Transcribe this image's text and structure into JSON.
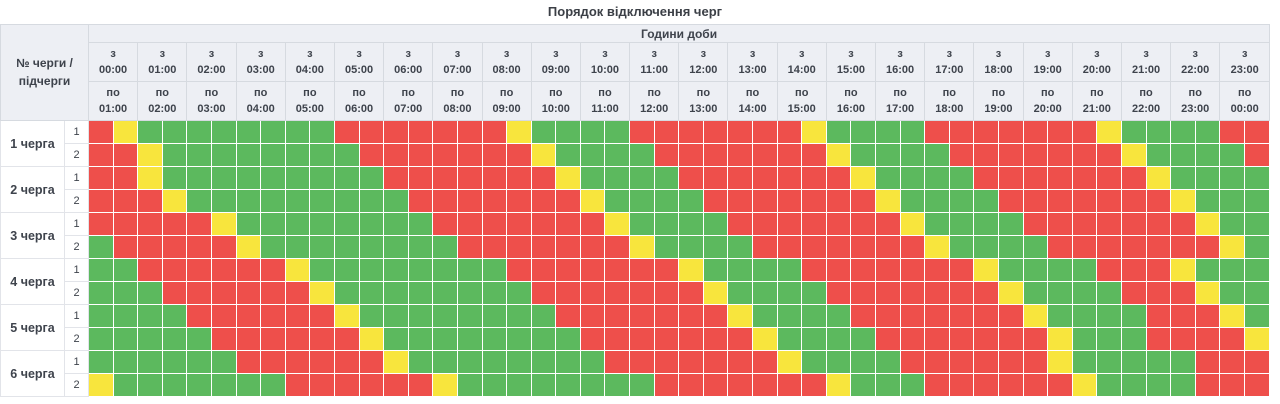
{
  "title": "Порядок відключення черг",
  "table": {
    "corner_label": "№ черги / підчерги",
    "hours_banner": "Години доби",
    "from_prefix": "з",
    "to_prefix": "по",
    "hours": [
      {
        "from": "00:00",
        "to": "01:00"
      },
      {
        "from": "01:00",
        "to": "02:00"
      },
      {
        "from": "02:00",
        "to": "03:00"
      },
      {
        "from": "03:00",
        "to": "04:00"
      },
      {
        "from": "04:00",
        "to": "05:00"
      },
      {
        "from": "05:00",
        "to": "06:00"
      },
      {
        "from": "06:00",
        "to": "07:00"
      },
      {
        "from": "07:00",
        "to": "08:00"
      },
      {
        "from": "08:00",
        "to": "09:00"
      },
      {
        "from": "09:00",
        "to": "10:00"
      },
      {
        "from": "10:00",
        "to": "11:00"
      },
      {
        "from": "11:00",
        "to": "12:00"
      },
      {
        "from": "12:00",
        "to": "13:00"
      },
      {
        "from": "13:00",
        "to": "14:00"
      },
      {
        "from": "14:00",
        "to": "15:00"
      },
      {
        "from": "15:00",
        "to": "16:00"
      },
      {
        "from": "16:00",
        "to": "17:00"
      },
      {
        "from": "17:00",
        "to": "18:00"
      },
      {
        "from": "18:00",
        "to": "19:00"
      },
      {
        "from": "19:00",
        "to": "20:00"
      },
      {
        "from": "20:00",
        "to": "21:00"
      },
      {
        "from": "21:00",
        "to": "22:00"
      },
      {
        "from": "22:00",
        "to": "23:00"
      },
      {
        "from": "23:00",
        "to": "00:00"
      }
    ],
    "cell_states": {
      "G": "power-on",
      "R": "power-off",
      "Y": "possible-outage"
    },
    "colors": {
      "green": "#5cb95e",
      "red": "#ee4f4b",
      "yellow": "#f8e53d"
    },
    "queues": [
      {
        "label": "1 черга",
        "subqueues": [
          {
            "label": "1",
            "cells": "RYGGGGGGGGRRRRRRRYGGGGRRRRRRRYGGGGRRRRRRRYGGGGRR"
          },
          {
            "label": "2",
            "cells": "RRYGGGGGGGGRRRRRRRYGGGGRRRRRRRYGGGGRRRRRRRYGGGGR"
          }
        ]
      },
      {
        "label": "2 черга",
        "subqueues": [
          {
            "label": "1",
            "cells": "RRYGGGGGGGGGRRRRRRRYGGGGRRRRRRRYGGGGRRRRRRRYGGGG"
          },
          {
            "label": "2",
            "cells": "RRRYGGGGGGGGGRRRRRRRYGGGGRRRRRRRYGGGGRRRRRRRYGGG"
          }
        ]
      },
      {
        "label": "3 черга",
        "subqueues": [
          {
            "label": "1",
            "cells": "RRRRRYGGGGGGGGRRRRRRRYGGGGRRRRRRRYGGGGRRRRRRRYGG"
          },
          {
            "label": "2",
            "cells": "GRRRRRYGGGGGGGGRRRRRRRYGGGGRRRRRRRYGGGGRRRRRRRYG"
          }
        ]
      },
      {
        "label": "4 черга",
        "subqueues": [
          {
            "label": "1",
            "cells": "GGRRRRRRYGGGGGGGGRRRRRRRYGGGGRRRRRRRYGGGGRRRYGGG"
          },
          {
            "label": "2",
            "cells": "GGGRRRRRRYGGGGGGGGRRRRRRRYGGGGRRRRRRRYGGGGRRRYGG"
          }
        ]
      },
      {
        "label": "5 черга",
        "subqueues": [
          {
            "label": "1",
            "cells": "GGGGRRRRRRYGGGGGGGGRRRRRRRYGGGGRRRRRRRYGGGGRRRYG"
          },
          {
            "label": "2",
            "cells": "GGGGGRRRRRRYGGGGGGGGRRRRRRRYGGGGRRRRRRRYGGGRRRRY"
          }
        ]
      },
      {
        "label": "6 черга",
        "subqueues": [
          {
            "label": "1",
            "cells": "GGGGGGRRRRRRYGGGGGGGGRRRRRRRYGGGGRRRRRRYGGGGGRRR"
          },
          {
            "label": "2",
            "cells": "YGGGGGGGRRRRRRYGGGGGGGGRRRRRRRYGGGRRRRRRYGGGGRRR"
          }
        ]
      }
    ]
  }
}
